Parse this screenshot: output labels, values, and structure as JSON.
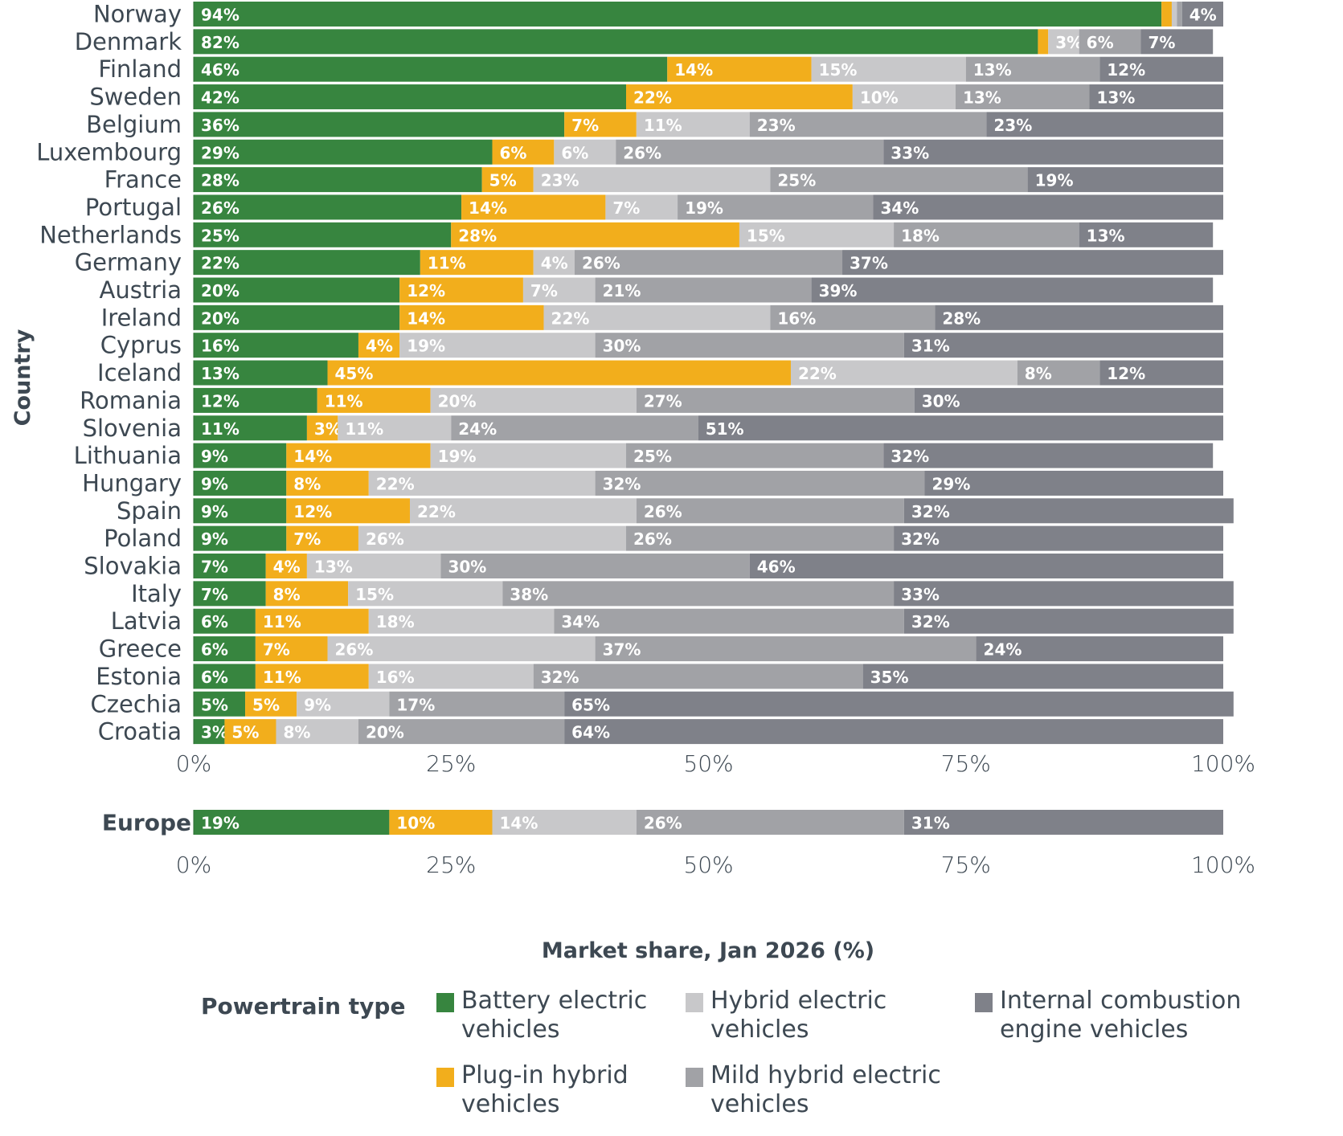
{
  "chart_data": {
    "type": "bar",
    "orientation": "horizontal",
    "stacked": true,
    "title": "",
    "xlabel": "Market share, Jan 2026 (%)",
    "ylabel": "Country",
    "xlim": [
      0,
      100
    ],
    "xticks": [
      "0%",
      "25%",
      "50%",
      "75%",
      "100%"
    ],
    "grid": false,
    "legend_title": "Powertrain type",
    "legend_position": "bottom",
    "series": [
      {
        "name": "Battery electric vehicles",
        "color": "#37853f"
      },
      {
        "name": "Plug-in hybrid vehicles",
        "color": "#f2ae1c"
      },
      {
        "name": "Hybrid electric vehicles",
        "color": "#c8c8ca"
      },
      {
        "name": "Mild hybrid electric vehicles",
        "color": "#a1a2a6"
      },
      {
        "name": "Internal combustion engine vehicles",
        "color": "#7f8189"
      }
    ],
    "categories": [
      "Norway",
      "Denmark",
      "Finland",
      "Sweden",
      "Belgium",
      "Luxembourg",
      "France",
      "Portugal",
      "Netherlands",
      "Germany",
      "Austria",
      "Ireland",
      "Cyprus",
      "Iceland",
      "Romania",
      "Slovenia",
      "Lithuania",
      "Hungary",
      "Spain",
      "Poland",
      "Slovakia",
      "Italy",
      "Latvia",
      "Greece",
      "Estonia",
      "Czechia",
      "Croatia"
    ],
    "values": [
      [
        94,
        1,
        0.5,
        0.5,
        4
      ],
      [
        82,
        1,
        3,
        6,
        7
      ],
      [
        46,
        14,
        15,
        13,
        12
      ],
      [
        42,
        22,
        10,
        13,
        13
      ],
      [
        36,
        7,
        11,
        23,
        23
      ],
      [
        29,
        6,
        6,
        26,
        33
      ],
      [
        28,
        5,
        23,
        25,
        19
      ],
      [
        26,
        14,
        7,
        19,
        34
      ],
      [
        25,
        28,
        15,
        18,
        13
      ],
      [
        22,
        11,
        4,
        26,
        37
      ],
      [
        20,
        12,
        7,
        21,
        39
      ],
      [
        20,
        14,
        22,
        16,
        28
      ],
      [
        16,
        4,
        19,
        30,
        31
      ],
      [
        13,
        45,
        22,
        8,
        12
      ],
      [
        12,
        11,
        20,
        27,
        30
      ],
      [
        11,
        3,
        11,
        24,
        51
      ],
      [
        9,
        14,
        19,
        25,
        32
      ],
      [
        9,
        8,
        22,
        32,
        29
      ],
      [
        9,
        12,
        22,
        26,
        32
      ],
      [
        9,
        7,
        26,
        26,
        32
      ],
      [
        7,
        4,
        13,
        30,
        46
      ],
      [
        7,
        8,
        15,
        38,
        33
      ],
      [
        6,
        11,
        18,
        34,
        32
      ],
      [
        6,
        7,
        26,
        37,
        24
      ],
      [
        6,
        11,
        16,
        32,
        35
      ],
      [
        5,
        5,
        9,
        17,
        65
      ],
      [
        3,
        5,
        8,
        20,
        64
      ]
    ],
    "labels": [
      [
        "94%",
        "",
        "",
        "",
        "4%"
      ],
      [
        "82%",
        "",
        "3%",
        "6%",
        "7%"
      ],
      [
        "46%",
        "14%",
        "15%",
        "13%",
        "12%"
      ],
      [
        "42%",
        "22%",
        "10%",
        "13%",
        "13%"
      ],
      [
        "36%",
        "7%",
        "11%",
        "23%",
        "23%"
      ],
      [
        "29%",
        "6%",
        "6%",
        "26%",
        "33%"
      ],
      [
        "28%",
        "5%",
        "23%",
        "25%",
        "19%"
      ],
      [
        "26%",
        "14%",
        "7%",
        "19%",
        "34%"
      ],
      [
        "25%",
        "28%",
        "15%",
        "18%",
        "13%"
      ],
      [
        "22%",
        "11%",
        "4%",
        "26%",
        "37%"
      ],
      [
        "20%",
        "12%",
        "7%",
        "21%",
        "39%"
      ],
      [
        "20%",
        "14%",
        "22%",
        "16%",
        "28%"
      ],
      [
        "16%",
        "4%",
        "19%",
        "30%",
        "31%"
      ],
      [
        "13%",
        "45%",
        "22%",
        "8%",
        "12%"
      ],
      [
        "12%",
        "11%",
        "20%",
        "27%",
        "30%"
      ],
      [
        "11%",
        "3%",
        "11%",
        "24%",
        "51%"
      ],
      [
        "9%",
        "14%",
        "19%",
        "25%",
        "32%"
      ],
      [
        "9%",
        "8%",
        "22%",
        "32%",
        "29%"
      ],
      [
        "9%",
        "12%",
        "22%",
        "26%",
        "32%"
      ],
      [
        "9%",
        "7%",
        "26%",
        "26%",
        "32%"
      ],
      [
        "7%",
        "4%",
        "13%",
        "30%",
        "46%"
      ],
      [
        "7%",
        "8%",
        "15%",
        "38%",
        "33%"
      ],
      [
        "6%",
        "11%",
        "18%",
        "34%",
        "32%"
      ],
      [
        "6%",
        "7%",
        "26%",
        "37%",
        "24%"
      ],
      [
        "6%",
        "11%",
        "16%",
        "32%",
        "35%"
      ],
      [
        "5%",
        "5%",
        "9%",
        "17%",
        "65%"
      ],
      [
        "3%",
        "5%",
        "8%",
        "20%",
        "64%"
      ]
    ],
    "summary": {
      "category": "Europe",
      "values": [
        19,
        10,
        14,
        26,
        31
      ],
      "labels": [
        "19%",
        "10%",
        "14%",
        "26%",
        "31%"
      ]
    }
  },
  "legend": {
    "title": "Powertrain type",
    "items": [
      {
        "line1": "Battery electric",
        "line2": "vehicles",
        "color": "#37853f"
      },
      {
        "line1": "Hybrid electric",
        "line2": "vehicles",
        "color": "#c8c8ca"
      },
      {
        "line1": "Internal combustion",
        "line2": "engine vehicles",
        "color": "#7f8189"
      },
      {
        "line1": "Plug-in hybrid",
        "line2": "vehicles",
        "color": "#f2ae1c"
      },
      {
        "line1": "Mild hybrid electric",
        "line2": "vehicles",
        "color": "#a1a2a6"
      }
    ]
  }
}
